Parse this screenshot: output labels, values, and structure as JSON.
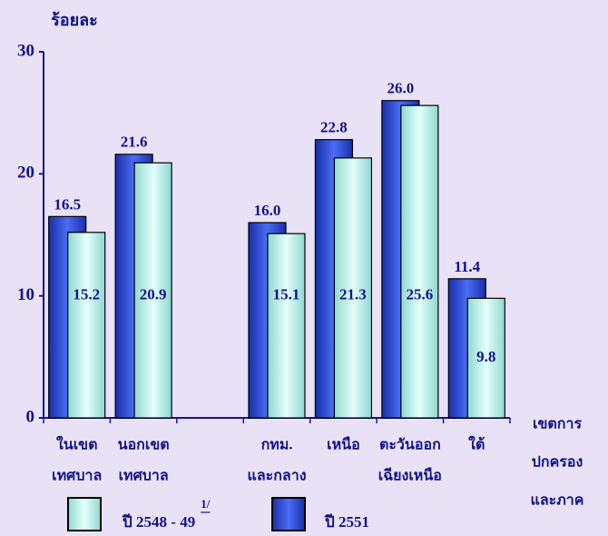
{
  "chart_data": {
    "type": "bar",
    "y_label": "ร้อยละ",
    "x_label": [
      "เขตการ",
      "ปกครอง",
      "และภาค"
    ],
    "categories": [
      [
        "ในเขต",
        "เทศบาล"
      ],
      [
        "นอกเขต",
        "เทศบาล"
      ],
      null,
      [
        "กทม.",
        "และกลาง"
      ],
      [
        "เหนือ"
      ],
      [
        "ตะวันออก",
        "เฉียงเหนือ"
      ],
      [
        "ใต้"
      ]
    ],
    "series": [
      {
        "name": "ปี 2551",
        "color": "#2a49d6",
        "values": [
          16.5,
          21.6,
          null,
          16.0,
          22.8,
          26.0,
          11.4
        ],
        "value_labels": [
          "16.5",
          "21.6",
          null,
          "16.0",
          "22.8",
          "26.0",
          "11.4"
        ]
      },
      {
        "name": "ปี 2548 - 49",
        "color": "#b9f0ea",
        "values": [
          15.2,
          20.9,
          null,
          15.1,
          21.3,
          25.6,
          9.8
        ],
        "value_labels": [
          "15.2",
          "20.9",
          null,
          "15.1",
          "21.3",
          "25.6",
          "9.8"
        ]
      }
    ],
    "legend_note": "1/",
    "ylim": [
      0,
      30
    ],
    "yticks": [
      0,
      10,
      20,
      30
    ]
  }
}
